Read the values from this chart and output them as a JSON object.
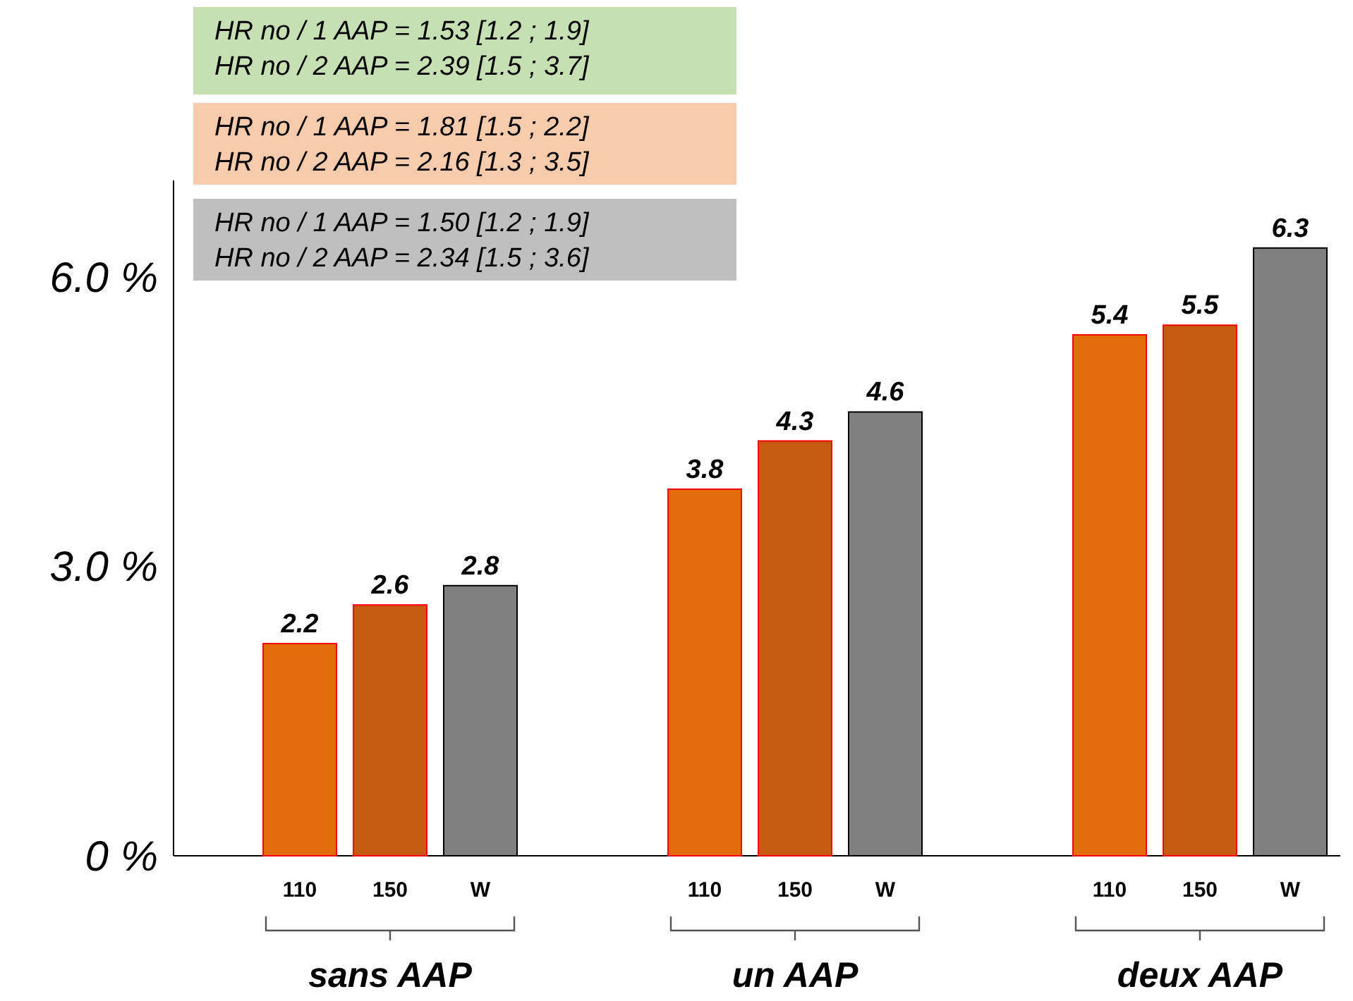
{
  "chart_data": {
    "type": "bar",
    "categories": [
      "sans AAP",
      "un AAP",
      "deux AAP"
    ],
    "series": [
      {
        "name": "110",
        "color": "#e36c0a",
        "values": [
          2.2,
          3.8,
          5.4
        ]
      },
      {
        "name": "150",
        "color": "#c55a11",
        "values": [
          2.6,
          4.3,
          5.5
        ]
      },
      {
        "name": "W",
        "color": "#808080",
        "values": [
          2.8,
          4.6,
          6.3
        ]
      }
    ],
    "ylim": [
      0,
      7
    ],
    "yticks": [
      {
        "value": 0,
        "label": "0 %"
      },
      {
        "value": 3,
        "label": "3.0 %"
      },
      {
        "value": 6,
        "label": "6.0 %"
      }
    ],
    "grid": false,
    "data_labels": true,
    "annotations": [
      "HR no / 1 AAP = 1.53 [1.2 ; 1.9]",
      "HR no / 2 AAP = 2.39 [1.5 ; 3.7]",
      "HR no / 1 AAP = 1.81 [1.5 ; 2.2]",
      "HR no / 2 AAP = 2.16 [1.3 ; 3.5]",
      "HR no / 1 AAP = 1.50 [1.2 ; 1.9]",
      "HR no / 2 AAP = 2.34 [1.5 ; 3.6]"
    ]
  }
}
